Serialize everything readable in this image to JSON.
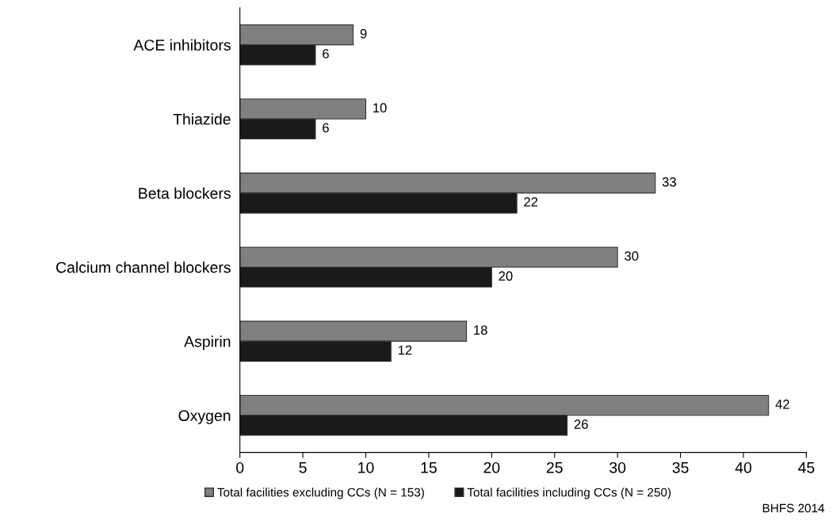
{
  "chart_data": {
    "type": "bar",
    "orientation": "horizontal",
    "categories": [
      "ACE inhibitors",
      "Thiazide",
      "Beta blockers",
      "Calcium channel blockers",
      "Aspirin",
      "Oxygen"
    ],
    "series": [
      {
        "name": "Total facilities excluding CCs (N = 153)",
        "color": "#808080",
        "values": [
          9,
          10,
          33,
          30,
          18,
          42
        ]
      },
      {
        "name": "Total facilities including CCs (N = 250)",
        "color": "#1a1a1a",
        "values": [
          6,
          6,
          22,
          20,
          12,
          26
        ]
      }
    ],
    "xlim": [
      0,
      45
    ],
    "xticks": [
      0,
      5,
      10,
      15,
      20,
      25,
      30,
      35,
      40,
      45
    ],
    "data_labels": true,
    "grid": false,
    "legend": "bottom",
    "annotations": [
      "BHFS 2014"
    ]
  }
}
